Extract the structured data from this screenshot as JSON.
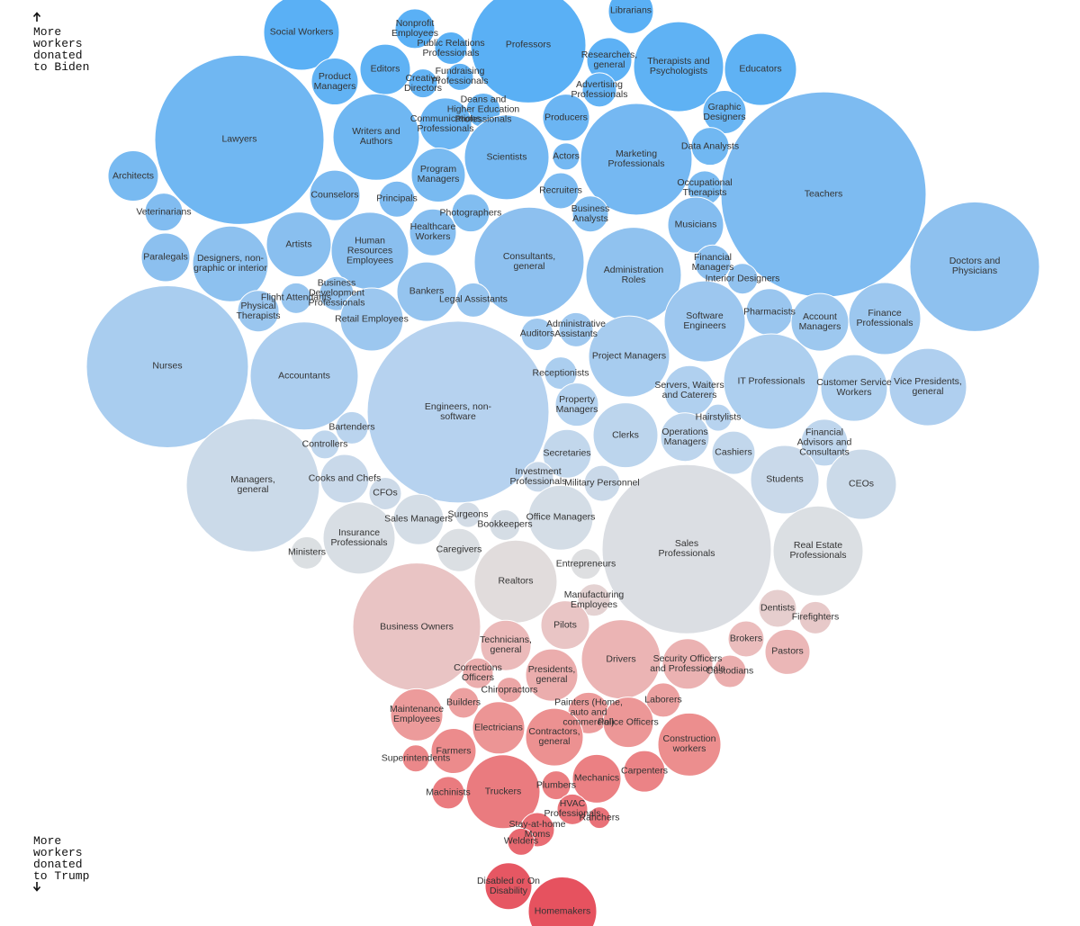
{
  "chart_data": {
    "type": "bubble",
    "y_label_top": "More workers donated to Biden",
    "y_label_bottom": "More workers donated to Trump",
    "ylim": [
      0,
      100
    ],
    "color_scale": [
      {
        "value": 95,
        "color": "#5ab0f5"
      },
      {
        "value": 72,
        "color": "#8cc0ef"
      },
      {
        "value": 55,
        "color": "#b7d3ef"
      },
      {
        "value": 45,
        "color": "#d2dce7"
      },
      {
        "value": 38,
        "color": "#e0e0e0"
      },
      {
        "value": 31,
        "color": "#ebbdbd"
      },
      {
        "value": 20,
        "color": "#ec8f8f"
      },
      {
        "value": 3,
        "color": "#e6525f"
      }
    ],
    "categories": [
      "Social Workers",
      "Nonprofit Employees",
      "Public Relations Professionals",
      "Professors",
      "Librarians",
      "Researchers, general",
      "Therapists and Psychologists",
      "Educators",
      "Editors",
      "Product Managers",
      "Creative Directors",
      "Fundraising Professionals",
      "Advertising Professionals",
      "Deans and Higher Education Professionals",
      "Lawyers",
      "Writers and Authors",
      "Communications Professionals",
      "Producers",
      "Graphic Designers",
      "Marketing Professionals",
      "Teachers",
      "Scientists",
      "Actors",
      "Data Analysts",
      "Architects",
      "Program Managers",
      "Counselors",
      "Principals",
      "Recruiters",
      "Occupational Therapists",
      "Veterinarians",
      "Photographers",
      "Business Analysts",
      "Musicians",
      "Healthcare Workers",
      "Artists",
      "Designers, non-graphic or interior",
      "Human Resources Employees",
      "Consultants, general",
      "Administration Roles",
      "Paralegals",
      "Doctors and Physicians",
      "Financial Managers",
      "Interior Designers",
      "Business Development Professionals",
      "Flight Attendants",
      "Physical Therapists",
      "Bankers",
      "Legal Assistants",
      "Pharmacists",
      "Account Managers",
      "Finance Professionals",
      "Software Engineers",
      "Retail Employees",
      "Nurses",
      "Administrative Assistants",
      "Auditors",
      "Project Managers",
      "Accountants",
      "Receptionists",
      "Engineers, non-software",
      "IT Professionals",
      "Servers, Waiters and Caterers",
      "Customer Service Workers",
      "Vice Presidents, general",
      "Property Managers",
      "Bartenders",
      "Hairstylists",
      "Clerks",
      "Financial Advisors and Consultants",
      "Controllers",
      "Operations Managers",
      "Cashiers",
      "Secretaries",
      "Managers, general",
      "Cooks and Chefs",
      "Investment Professionals",
      "Military Personnel",
      "Students",
      "CEOs",
      "CFOs",
      "Sales Managers",
      "Surgeons",
      "Office Managers",
      "Bookkeepers",
      "Sales Professionals",
      "Insurance Professionals",
      "Real Estate Professionals",
      "Ministers",
      "Caregivers",
      "Entrepreneurs",
      "Realtors",
      "Manufacturing Employees",
      "Dentists",
      "Firefighters",
      "Business Owners",
      "Pilots",
      "Brokers",
      "Technicians, general",
      "Drivers",
      "Pastors",
      "Security Officers and Professionals",
      "Custodians",
      "Corrections Officers",
      "Presidents, general",
      "Chiropractors",
      "Laborers",
      "Builders",
      "Maintenance Employees",
      "Painters (Home, auto and commercial)",
      "Police Officers",
      "Electricians",
      "Contractors, general",
      "Construction workers",
      "Farmers",
      "Superintendents",
      "Carpenters",
      "Mechanics",
      "Plumbers",
      "Truckers",
      "Machinists",
      "HVAC Professionals",
      "Ranchers",
      "Stay-at-home Moms",
      "Welders",
      "Disabled or On Disability",
      "Homemakers"
    ],
    "values": [
      96.5,
      96.9,
      94.8,
      95.1,
      98.8,
      93.5,
      92.8,
      92.5,
      92.5,
      91.2,
      91.0,
      91.7,
      90.3,
      88.1,
      84.9,
      85.2,
      86.6,
      87.3,
      87.9,
      82.8,
      79.0,
      83.0,
      83.1,
      84.2,
      81.0,
      81.1,
      78.9,
      78.5,
      79.4,
      79.7,
      77.1,
      77.0,
      76.9,
      75.7,
      74.9,
      73.6,
      71.5,
      72.9,
      71.7,
      70.3,
      72.2,
      71.2,
      71.6,
      69.9,
      68.3,
      67.8,
      66.4,
      68.5,
      67.6,
      66.3,
      65.2,
      65.6,
      65.3,
      65.5,
      60.4,
      64.4,
      63.9,
      61.5,
      59.4,
      59.7,
      55.5,
      58.8,
      57.8,
      58.1,
      58.2,
      56.3,
      53.8,
      54.9,
      53.0,
      52.2,
      52.0,
      52.8,
      51.1,
      51.0,
      47.6,
      48.3,
      48.5,
      47.8,
      48.2,
      47.7,
      46.7,
      43.9,
      44.4,
      44.1,
      43.3,
      40.7,
      41.9,
      40.5,
      40.3,
      40.6,
      39.1,
      37.2,
      35.2,
      34.3,
      33.3,
      32.3,
      32.5,
      31.0,
      30.3,
      28.8,
      29.6,
      28.3,
      27.5,
      27.3,
      27.1,
      25.5,
      24.4,
      24.1,
      22.8,
      23.0,
      22.0,
      21.4,
      20.4,
      19.6,
      18.9,
      18.1,
      16.7,
      15.9,
      15.2,
      14.5,
      14.4,
      12.6,
      11.7,
      10.4,
      9.1,
      4.3,
      1.6
    ],
    "sizes": [
      1764,
      484,
      324,
      4096,
      625,
      625,
      2500,
      1600,
      784,
      676,
      256,
      225,
      361,
      361,
      8836,
      2304,
      841,
      676,
      576,
      3844,
      12996,
      2209,
      225,
      441,
      784,
      900,
      784,
      400,
      400,
      361,
      441,
      441,
      400,
      961,
      676,
      1296,
      1764,
      1849,
      3721,
      2809,
      729,
      5184,
      400,
      289,
      361,
      289,
      529,
      1089,
      361,
      676,
      1024,
      1600,
      2025,
      1225,
      8100,
      361,
      324,
      2025,
      3600,
      324,
      10201,
      2809,
      784,
      1369,
      1849,
      576,
      324,
      225,
      1296,
      676,
      256,
      729,
      576,
      729,
      5476,
      729,
      289,
      400,
      1444,
      1521,
      324,
      784,
      196,
      1296,
      289,
      8836,
      1600,
      2500,
      324,
      576,
      289,
      2116,
      324,
      441,
      324,
      5041,
      729,
      400,
      784,
      1936,
      625,
      784,
      324,
      289,
      841,
      196,
      361,
      289,
      841,
      529,
      784,
      841,
      1024,
      1225,
      625,
      225,
      529,
      729,
      256,
      1681,
      324,
      289,
      144,
      361,
      225,
      676,
      1444
    ]
  }
}
